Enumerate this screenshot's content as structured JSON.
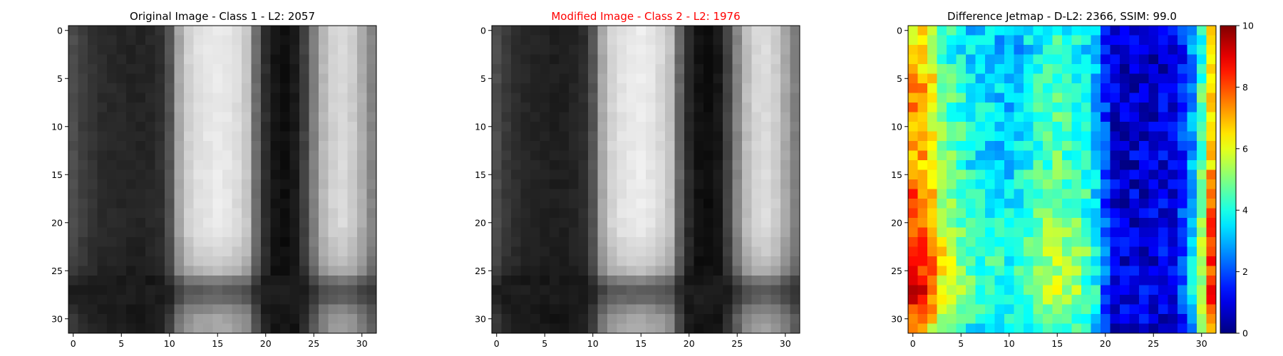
{
  "chart_data": [
    {
      "type": "heatmap",
      "title": "Original Image - Class 1 - L2: 2057",
      "title_color": "#000000",
      "colormap": "gray",
      "grid": false,
      "xlim": [
        0,
        31
      ],
      "ylim": [
        31,
        0
      ],
      "x_ticks": [
        "0",
        "5",
        "10",
        "15",
        "20",
        "25",
        "30"
      ],
      "y_ticks": [
        "0",
        "5",
        "10",
        "15",
        "20",
        "25",
        "30"
      ],
      "column_profile": [
        0.3,
        0.24,
        0.2,
        0.17,
        0.16,
        0.15,
        0.14,
        0.14,
        0.15,
        0.18,
        0.32,
        0.65,
        0.82,
        0.88,
        0.9,
        0.92,
        0.9,
        0.86,
        0.78,
        0.42,
        0.18,
        0.08,
        0.06,
        0.1,
        0.25,
        0.5,
        0.72,
        0.82,
        0.85,
        0.8,
        0.68,
        0.52
      ],
      "row_profile": [
        1.0,
        1.0,
        1.0,
        1.0,
        1.0,
        1.0,
        1.0,
        1.0,
        1.0,
        1.0,
        1.0,
        1.0,
        1.0,
        1.0,
        1.0,
        1.0,
        1.0,
        1.0,
        1.0,
        1.0,
        1.0,
        0.98,
        0.95,
        0.92,
        0.88,
        0.8,
        0.55,
        0.4,
        0.45,
        0.6,
        0.7,
        0.72
      ],
      "row_floor": 0.12
    },
    {
      "type": "heatmap",
      "title": "Modified Image - Class 2 - L2: 1976",
      "title_color": "#ff0000",
      "colormap": "gray",
      "grid": false,
      "xlim": [
        0,
        31
      ],
      "ylim": [
        31,
        0
      ],
      "x_ticks": [
        "0",
        "5",
        "10",
        "15",
        "20",
        "25",
        "30"
      ],
      "y_ticks": [
        "0",
        "5",
        "10",
        "15",
        "20",
        "25",
        "30"
      ],
      "column_profile": [
        0.3,
        0.22,
        0.18,
        0.15,
        0.14,
        0.13,
        0.12,
        0.12,
        0.14,
        0.17,
        0.33,
        0.66,
        0.83,
        0.89,
        0.91,
        0.93,
        0.9,
        0.85,
        0.76,
        0.4,
        0.16,
        0.07,
        0.05,
        0.09,
        0.26,
        0.52,
        0.74,
        0.84,
        0.86,
        0.8,
        0.66,
        0.5
      ],
      "row_profile": [
        1.0,
        1.0,
        1.0,
        1.0,
        1.0,
        1.0,
        1.0,
        1.0,
        1.0,
        1.0,
        1.0,
        1.0,
        1.0,
        1.0,
        1.0,
        1.0,
        1.0,
        1.0,
        1.0,
        1.0,
        1.0,
        0.98,
        0.95,
        0.92,
        0.88,
        0.8,
        0.55,
        0.4,
        0.45,
        0.6,
        0.7,
        0.72
      ],
      "row_floor": 0.12
    },
    {
      "type": "heatmap",
      "title": "Difference Jetmap - D-L2: 2366, SSIM: 99.0",
      "title_color": "#000000",
      "colormap": "jet",
      "grid": false,
      "xlim": [
        0,
        31
      ],
      "ylim": [
        31,
        0
      ],
      "x_ticks": [
        "0",
        "5",
        "10",
        "15",
        "20",
        "25",
        "30"
      ],
      "y_ticks": [
        "0",
        "5",
        "10",
        "15",
        "20",
        "25",
        "30"
      ],
      "value_range": [
        0,
        10
      ],
      "colorbar_ticks": [
        "0",
        "2",
        "4",
        "6",
        "8",
        "10"
      ],
      "column_profile": [
        7.2,
        7.0,
        6.2,
        5.2,
        4.6,
        4.2,
        3.8,
        3.6,
        3.5,
        3.4,
        3.3,
        3.4,
        3.8,
        4.2,
        4.5,
        4.6,
        4.4,
        4.2,
        3.8,
        3.2,
        1.8,
        0.9,
        0.8,
        0.8,
        0.8,
        0.8,
        0.9,
        1.0,
        1.6,
        2.8,
        4.4,
        6.8
      ],
      "row_profile": [
        0.9,
        0.9,
        0.9,
        0.9,
        0.95,
        1.0,
        1.0,
        1.0,
        1.0,
        1.0,
        1.0,
        1.0,
        1.0,
        1.0,
        1.0,
        1.05,
        1.05,
        1.1,
        1.1,
        1.1,
        1.15,
        1.15,
        1.2,
        1.25,
        1.2,
        1.2,
        1.2,
        1.25,
        1.2,
        1.15,
        1.1,
        1.0
      ]
    }
  ]
}
